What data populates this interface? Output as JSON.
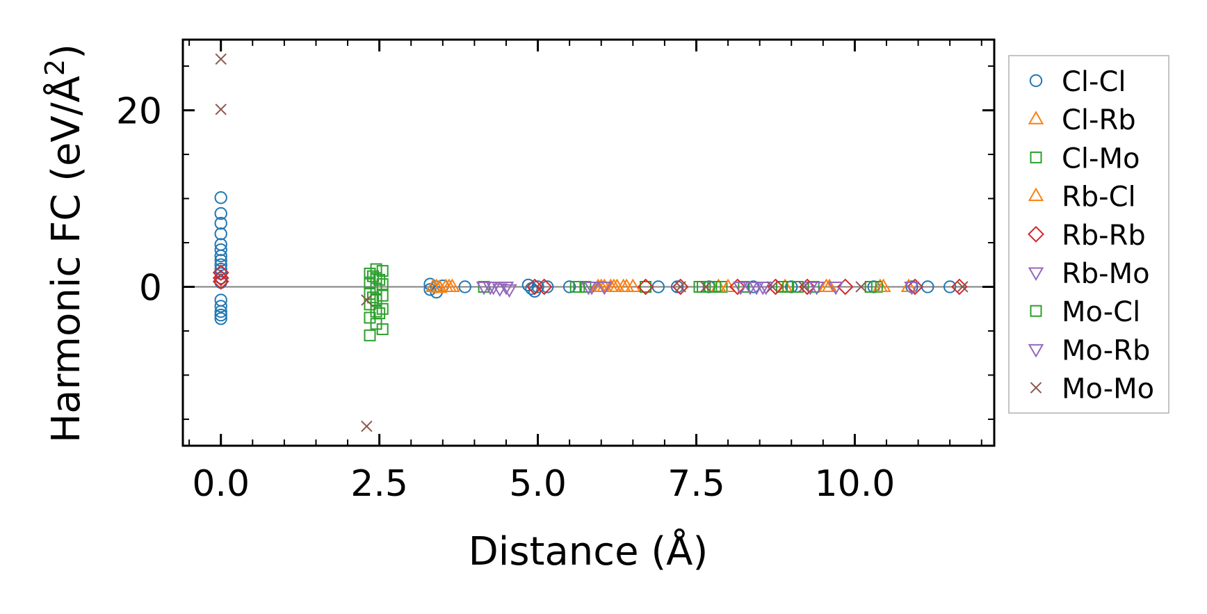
{
  "chart_data": {
    "type": "scatter",
    "title": "",
    "xlabel": "Distance (Å)",
    "ylabel_main": "Harmonic FC (eV/Å",
    "ylabel_sup": "2",
    "ylabel_close": ")",
    "xlim": [
      -0.6,
      12.2
    ],
    "ylim": [
      -18,
      28
    ],
    "xticks": [
      0.0,
      2.5,
      5.0,
      7.5,
      10.0
    ],
    "xtick_labels": [
      "0.0",
      "2.5",
      "5.0",
      "7.5",
      "10.0"
    ],
    "yticks": [
      0,
      20
    ],
    "ytick_labels": [
      "0",
      "20"
    ],
    "x_minor_step": 0.5,
    "y_minor_step": 5,
    "zero_line": true,
    "legend_position": "right-outside",
    "series": [
      {
        "name": "Cl-Cl",
        "marker": "circle",
        "color": "#1f77b4",
        "points": [
          [
            0,
            10.1
          ],
          [
            0,
            8.3
          ],
          [
            0,
            7.2
          ],
          [
            0,
            6.0
          ],
          [
            0,
            4.8
          ],
          [
            0,
            4.2
          ],
          [
            0,
            3.5
          ],
          [
            0,
            3.0
          ],
          [
            0,
            2.5
          ],
          [
            0,
            2.0
          ],
          [
            0,
            1.5
          ],
          [
            0,
            1.0
          ],
          [
            0,
            0.5
          ],
          [
            0,
            -1.5
          ],
          [
            0,
            -2.2
          ],
          [
            0,
            -2.8
          ],
          [
            0,
            -3.2
          ],
          [
            0,
            -3.6
          ],
          [
            3.3,
            0.3
          ],
          [
            3.3,
            -0.3
          ],
          [
            3.4,
            0.0
          ],
          [
            3.4,
            -0.6
          ],
          [
            3.5,
            0.1
          ],
          [
            3.85,
            0.0
          ],
          [
            4.85,
            0.2
          ],
          [
            4.9,
            -0.2
          ],
          [
            4.95,
            -0.5
          ],
          [
            5.0,
            0.0
          ],
          [
            5.15,
            0.0
          ],
          [
            5.5,
            0.0
          ],
          [
            6.9,
            0.0
          ],
          [
            7.2,
            0.0
          ],
          [
            7.7,
            0.0
          ],
          [
            8.4,
            0.0
          ],
          [
            9.0,
            0.0
          ],
          [
            10.3,
            0.0
          ],
          [
            10.9,
            0.0
          ],
          [
            11.15,
            0.0
          ],
          [
            11.5,
            0.0
          ]
        ]
      },
      {
        "name": "Cl-Rb",
        "marker": "triangle-up",
        "color": "#ff7f0e",
        "points": [
          [
            3.35,
            0.0
          ],
          [
            3.45,
            -0.1
          ],
          [
            3.55,
            0.0
          ],
          [
            3.65,
            0.0
          ],
          [
            5.95,
            0.0
          ],
          [
            6.05,
            0.0
          ],
          [
            6.15,
            0.0
          ],
          [
            6.25,
            0.0
          ],
          [
            6.35,
            0.0
          ],
          [
            6.5,
            0.0
          ],
          [
            7.85,
            0.0
          ],
          [
            8.9,
            0.0
          ],
          [
            9.55,
            0.0
          ],
          [
            10.4,
            0.0
          ],
          [
            10.85,
            0.0
          ]
        ]
      },
      {
        "name": "Cl-Mo",
        "marker": "square",
        "color": "#2ca02c",
        "points": [
          [
            2.35,
            1.5
          ],
          [
            2.35,
            0.5
          ],
          [
            2.35,
            -0.8
          ],
          [
            2.35,
            -2.0
          ],
          [
            2.35,
            -3.5
          ],
          [
            2.35,
            -5.5
          ],
          [
            2.45,
            2.0
          ],
          [
            2.45,
            1.0
          ],
          [
            2.45,
            -0.2
          ],
          [
            2.45,
            -1.5
          ],
          [
            2.45,
            -2.8
          ],
          [
            2.45,
            -4.2
          ],
          [
            2.55,
            1.8
          ],
          [
            2.55,
            0.3
          ],
          [
            2.55,
            -1.0
          ],
          [
            2.55,
            -2.5
          ],
          [
            2.55,
            -4.8
          ],
          [
            4.15,
            0.0
          ],
          [
            5.6,
            0.0
          ],
          [
            5.75,
            0.0
          ],
          [
            6.7,
            0.0
          ],
          [
            7.55,
            0.0
          ],
          [
            7.7,
            0.0
          ],
          [
            7.9,
            0.0
          ],
          [
            8.25,
            0.0
          ],
          [
            8.85,
            0.0
          ],
          [
            9.1,
            0.0
          ],
          [
            9.35,
            0.0
          ],
          [
            10.35,
            0.0
          ]
        ]
      },
      {
        "name": "Rb-Cl",
        "marker": "triangle-up",
        "color": "#ff7f0e",
        "points": [
          [
            3.4,
            0.0
          ],
          [
            3.6,
            0.0
          ],
          [
            6.0,
            0.0
          ],
          [
            6.2,
            0.0
          ],
          [
            6.4,
            0.0
          ],
          [
            8.0,
            0.0
          ],
          [
            9.6,
            0.0
          ],
          [
            10.45,
            0.0
          ]
        ]
      },
      {
        "name": "Rb-Rb",
        "marker": "diamond",
        "color": "#d62728",
        "points": [
          [
            0,
            1.0
          ],
          [
            0,
            1.6
          ],
          [
            0,
            0.6
          ],
          [
            4.95,
            0.0
          ],
          [
            5.1,
            0.0
          ],
          [
            6.7,
            0.0
          ],
          [
            7.25,
            0.0
          ],
          [
            8.15,
            0.0
          ],
          [
            8.75,
            0.0
          ],
          [
            9.25,
            0.0
          ],
          [
            9.85,
            0.0
          ],
          [
            10.95,
            0.0
          ],
          [
            11.65,
            0.0
          ]
        ]
      },
      {
        "name": "Rb-Mo",
        "marker": "triangle-down",
        "color": "#9467bd",
        "points": [
          [
            4.15,
            0.0
          ],
          [
            4.25,
            0.0
          ],
          [
            4.4,
            -0.2
          ],
          [
            4.55,
            -0.3
          ],
          [
            5.8,
            0.0
          ],
          [
            6.05,
            0.0
          ],
          [
            8.2,
            0.0
          ],
          [
            8.35,
            0.0
          ],
          [
            8.55,
            0.0
          ],
          [
            9.3,
            0.0
          ],
          [
            9.7,
            0.0
          ],
          [
            10.9,
            0.0
          ]
        ]
      },
      {
        "name": "Mo-Cl",
        "marker": "square",
        "color": "#2ca02c",
        "points": [
          [
            2.4,
            1.2
          ],
          [
            2.4,
            -1.2
          ],
          [
            2.5,
            0.8
          ],
          [
            2.5,
            -3.0
          ],
          [
            5.65,
            0.0
          ],
          [
            7.6,
            0.0
          ],
          [
            7.8,
            0.0
          ],
          [
            8.95,
            0.0
          ],
          [
            10.25,
            0.0
          ]
        ]
      },
      {
        "name": "Mo-Rb",
        "marker": "triangle-down",
        "color": "#9467bd",
        "points": [
          [
            4.3,
            0.0
          ],
          [
            4.5,
            0.0
          ],
          [
            5.85,
            0.0
          ],
          [
            8.45,
            0.0
          ],
          [
            8.6,
            0.0
          ],
          [
            9.4,
            0.0
          ]
        ]
      },
      {
        "name": "Mo-Mo",
        "marker": "x",
        "color": "#8c564b",
        "points": [
          [
            0,
            25.8
          ],
          [
            0,
            20.1
          ],
          [
            2.3,
            -1.5
          ],
          [
            2.3,
            -15.8
          ],
          [
            7.25,
            0.0
          ],
          [
            7.65,
            0.0
          ],
          [
            8.7,
            0.0
          ],
          [
            9.2,
            0.0
          ],
          [
            10.1,
            0.0
          ],
          [
            11.7,
            0.0
          ]
        ]
      }
    ]
  }
}
